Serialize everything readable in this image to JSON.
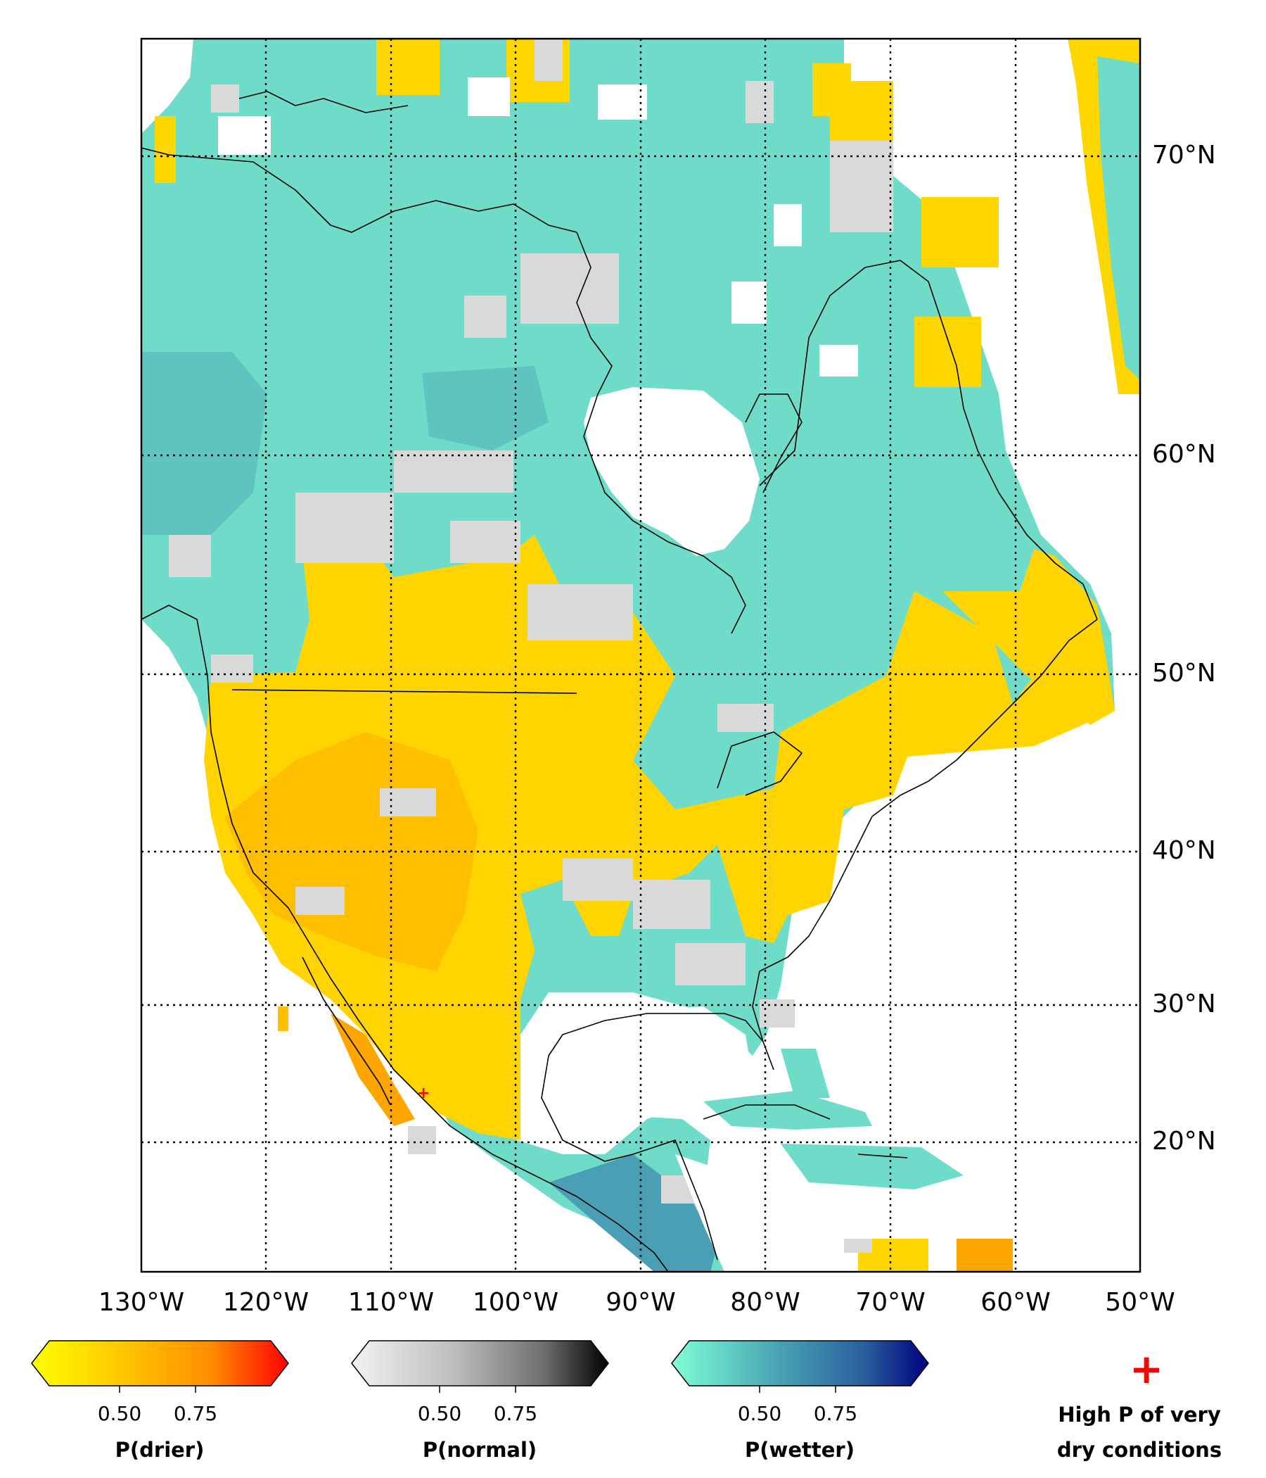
{
  "map": {
    "lon_labels": [
      "130°W",
      "120°W",
      "110°W",
      "100°W",
      "90°W",
      "80°W",
      "70°W",
      "60°W",
      "50°W"
    ],
    "lat_labels": [
      "70°N",
      "60°N",
      "50°N",
      "40°N",
      "30°N",
      "20°N"
    ]
  },
  "legend": {
    "colorbars": [
      {
        "title": "P(drier)",
        "ticks": [
          "0.50",
          "0.75"
        ],
        "colors": [
          "#ffff00",
          "#ffc800",
          "#ff8c00",
          "#ff0000"
        ]
      },
      {
        "title": "P(normal)",
        "ticks": [
          "0.50",
          "0.75"
        ],
        "colors": [
          "#f2f2f2",
          "#bdbdbd",
          "#6e6e6e",
          "#000000"
        ]
      },
      {
        "title": "P(wetter)",
        "ticks": [
          "0.50",
          "0.75"
        ],
        "colors": [
          "#7fffd4",
          "#4aa6b6",
          "#2a5f9c",
          "#000080"
        ]
      }
    ],
    "marker": {
      "symbol": "+",
      "label_line1": "High P of very",
      "label_line2": "dry conditions",
      "color": "#ff0000"
    }
  },
  "colors": {
    "wetter": "#6edcc8",
    "wetter_dark": "#5fbfc0",
    "drier": "#ffd700",
    "drier_dark": "#ffbf00",
    "normal": "#d9d9d9",
    "water": "#ffffff"
  }
}
